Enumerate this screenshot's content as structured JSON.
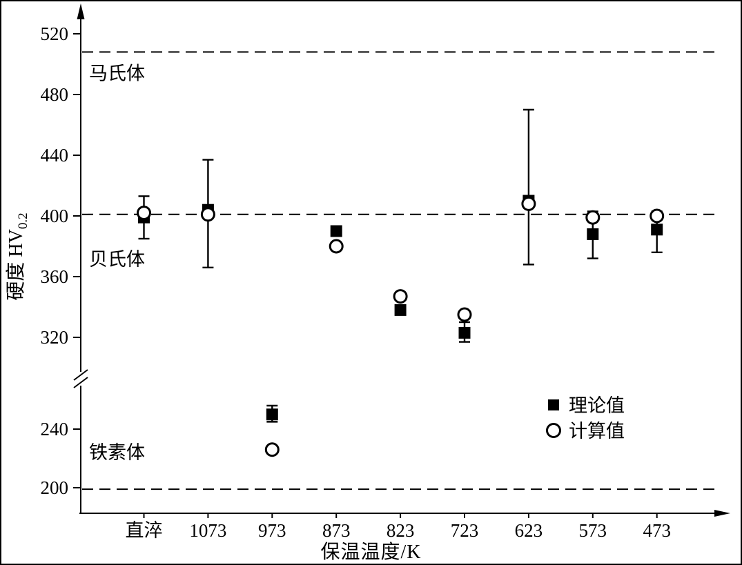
{
  "figure": {
    "background": "#ffffff",
    "border_color": "#000000",
    "ink_color": "#000000"
  },
  "chart_data": {
    "type": "scatter",
    "title": "",
    "xlabel": "保温温度/K",
    "ylabel": "硬度  HV",
    "ylabel_subscript": "0.2",
    "categories": [
      "直淬",
      "1073",
      "973",
      "873",
      "823",
      "723",
      "623",
      "573",
      "473"
    ],
    "y_axis": {
      "upper_ticks": [
        320,
        360,
        400,
        440,
        480,
        520
      ],
      "lower_ticks": [
        200,
        240
      ],
      "axis_break": true,
      "upper_range": [
        320,
        520
      ],
      "lower_range": [
        200,
        240
      ]
    },
    "series": [
      {
        "name": "理论值",
        "marker": "filled-square",
        "values": [
          399,
          404,
          250,
          390,
          338,
          323,
          410,
          388,
          391
        ],
        "error_low": [
          385,
          366,
          245,
          null,
          null,
          317,
          368,
          372,
          376
        ],
        "error_high": [
          413,
          437,
          256,
          null,
          null,
          330,
          470,
          403,
          403
        ]
      },
      {
        "name": "计算值",
        "marker": "open-circle",
        "values": [
          402,
          401,
          226,
          380,
          347,
          335,
          408,
          399,
          400
        ]
      }
    ],
    "reference_lines": [
      {
        "value": 508,
        "label": "马氏体",
        "label_position": "below"
      },
      {
        "value": 401,
        "label": "贝氏体",
        "label_position": "below"
      },
      {
        "value": 199,
        "label": "铁素体",
        "label_position": "above"
      }
    ],
    "legend": [
      {
        "marker": "filled-square",
        "label": "理论值"
      },
      {
        "marker": "open-circle",
        "label": "计算值"
      }
    ]
  }
}
